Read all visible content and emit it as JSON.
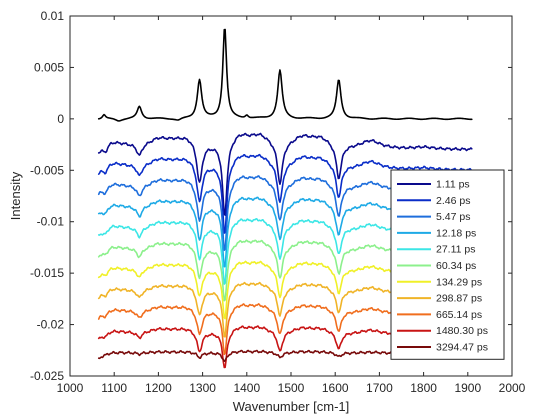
{
  "chart_data": {
    "type": "line",
    "xlabel": "Wavenumber [cm-1]",
    "ylabel": "Intensity",
    "xlim": [
      1000,
      2000
    ],
    "ylim": [
      -0.025,
      0.01
    ],
    "x_ticks": [
      1000,
      1100,
      1200,
      1300,
      1400,
      1500,
      1600,
      1700,
      1800,
      1900,
      2000
    ],
    "x_tick_labels": [
      "1000",
      "1100",
      "1200",
      "1300",
      "1400",
      "1500",
      "1600",
      "1700",
      "1800",
      "1900",
      "2000"
    ],
    "y_ticks": [
      0.01,
      0.005,
      0,
      -0.005,
      -0.01,
      -0.015,
      -0.02,
      -0.025
    ],
    "y_tick_labels": [
      "0.01",
      "0.005",
      "0",
      "-0.005",
      "-0.01",
      "-0.015",
      "-0.02",
      "-0.025"
    ],
    "grid": false,
    "legend_position": "right",
    "x_range_data": [
      1065,
      1910
    ],
    "reference_series": {
      "color": "#000000",
      "offset": 0.0,
      "peaks": [
        {
          "x": 1077,
          "y": 0.0004
        },
        {
          "x": 1157,
          "y": 0.0012
        },
        {
          "x": 1293,
          "y": 0.0038
        },
        {
          "x": 1350,
          "y": 0.009
        },
        {
          "x": 1400,
          "y": 0.0003
        },
        {
          "x": 1475,
          "y": 0.0047
        },
        {
          "x": 1608,
          "y": 0.0038
        }
      ]
    },
    "series": [
      {
        "name": "1.11 ps",
        "color": "#0a0a8c",
        "offset": -0.003,
        "scale": 1.0
      },
      {
        "name": "2.46 ps",
        "color": "#0a2dc8",
        "offset": -0.005,
        "scale": 0.95
      },
      {
        "name": "5.47 ps",
        "color": "#1e6edc",
        "offset": -0.007,
        "scale": 0.9
      },
      {
        "name": "12.18 ps",
        "color": "#1eaae6",
        "offset": -0.009,
        "scale": 0.85
      },
      {
        "name": "27.11 ps",
        "color": "#3ce6e6",
        "offset": -0.011,
        "scale": 0.8
      },
      {
        "name": "60.34 ps",
        "color": "#8cf08c",
        "offset": -0.013,
        "scale": 0.75
      },
      {
        "name": "134.29 ps",
        "color": "#f0f028",
        "offset": -0.015,
        "scale": 0.7
      },
      {
        "name": "298.87 ps",
        "color": "#f0b428",
        "offset": -0.017,
        "scale": 0.65
      },
      {
        "name": "665.14 ps",
        "color": "#f06e1e",
        "offset": -0.019,
        "scale": 0.6
      },
      {
        "name": "1480.30 ps",
        "color": "#c81414",
        "offset": -0.021,
        "scale": 0.5
      },
      {
        "name": "3294.47 ps",
        "color": "#780a0a",
        "offset": -0.0228,
        "scale": 0.12
      }
    ],
    "dip_shape": [
      {
        "x": 1080,
        "y": -0.0008
      },
      {
        "x": 1157,
        "y": -0.0011
      },
      {
        "x": 1293,
        "y": -0.0039
      },
      {
        "x": 1350,
        "y": -0.0072
      },
      {
        "x": 1475,
        "y": -0.004
      },
      {
        "x": 1608,
        "y": -0.0033
      }
    ],
    "ripple_shape": [
      {
        "x": 1090,
        "y": 0.0007
      },
      {
        "x": 1127,
        "y": 0.0002
      },
      {
        "x": 1200,
        "y": 0.0008
      },
      {
        "x": 1235,
        "y": 0.0004
      },
      {
        "x": 1265,
        "y": 0.0008
      },
      {
        "x": 1385,
        "y": 0.0012
      },
      {
        "x": 1430,
        "y": 0.0011
      },
      {
        "x": 1525,
        "y": 0.001
      },
      {
        "x": 1567,
        "y": 0.0009
      },
      {
        "x": 1680,
        "y": 0.0008
      },
      {
        "x": 1800,
        "y": 0.0002
      }
    ]
  }
}
